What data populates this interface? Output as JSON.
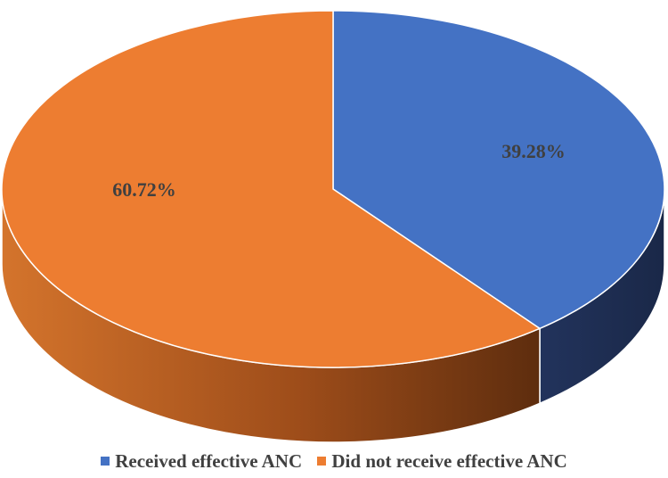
{
  "chart_data": {
    "type": "pie",
    "title": "",
    "series": [
      {
        "name": "Received effective ANC",
        "value": 39.28,
        "label": "39.28%",
        "color": "#4472C4"
      },
      {
        "name": "Did not receive effective ANC",
        "value": 60.72,
        "label": "60.72%",
        "color": "#ED7D31"
      }
    ],
    "style": "3d",
    "legend_position": "bottom"
  }
}
